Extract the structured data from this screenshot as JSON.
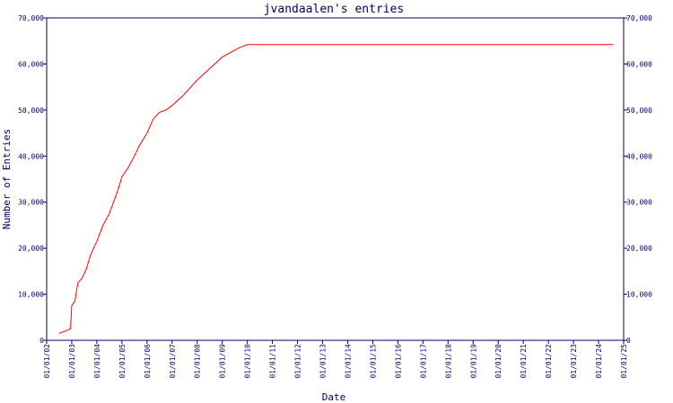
{
  "chart_data": {
    "type": "line",
    "title": "jvandaalen's entries",
    "xlabel": "Date",
    "ylabel": "Number of Entries",
    "x_ticks": [
      "01/01/02",
      "01/01/03",
      "01/01/04",
      "01/01/05",
      "01/01/06",
      "01/01/07",
      "01/01/08",
      "01/01/09",
      "01/01/10",
      "01/01/11",
      "01/01/12",
      "01/01/13",
      "01/01/14",
      "01/01/15",
      "01/01/16",
      "01/01/17",
      "01/01/18",
      "01/01/19",
      "01/01/20",
      "01/01/21",
      "01/01/22",
      "01/01/23",
      "01/01/24",
      "01/01/25"
    ],
    "y_ticks": [
      "0",
      "10,000",
      "20,000",
      "30,000",
      "40,000",
      "50,000",
      "60,000",
      "70,000"
    ],
    "ylim": [
      0,
      70000
    ],
    "grid": false,
    "series": [
      {
        "color": "#ff0000",
        "x": [
          "2002-07-01",
          "2002-11-01",
          "2002-12-15",
          "2003-01-01",
          "2003-02-15",
          "2003-04-01",
          "2003-06-01",
          "2003-08-01",
          "2003-10-01",
          "2004-01-01",
          "2004-04-01",
          "2004-07-01",
          "2004-09-01",
          "2004-11-01",
          "2005-01-01",
          "2005-04-01",
          "2005-07-01",
          "2005-09-01",
          "2005-11-01",
          "2006-01-01",
          "2006-04-01",
          "2006-07-01",
          "2006-10-01",
          "2007-01-01",
          "2007-06-01",
          "2008-01-01",
          "2008-07-01",
          "2009-01-01",
          "2009-05-01",
          "2009-09-01",
          "2010-01-01",
          "2011-01-01",
          "2012-01-01",
          "2014-01-01",
          "2016-01-01",
          "2018-01-01",
          "2020-01-01",
          "2022-01-01",
          "2024-01-01",
          "2024-08-01"
        ],
        "y": [
          1500,
          2200,
          2500,
          7500,
          8500,
          12500,
          13500,
          15500,
          18500,
          21500,
          25000,
          27500,
          30000,
          32500,
          35500,
          37500,
          40000,
          42000,
          43500,
          45000,
          48000,
          49500,
          50000,
          51000,
          53000,
          56500,
          59000,
          61500,
          62500,
          63500,
          64200,
          64200,
          64200,
          64200,
          64200,
          64200,
          64200,
          64200,
          64200,
          64200
        ]
      }
    ]
  }
}
